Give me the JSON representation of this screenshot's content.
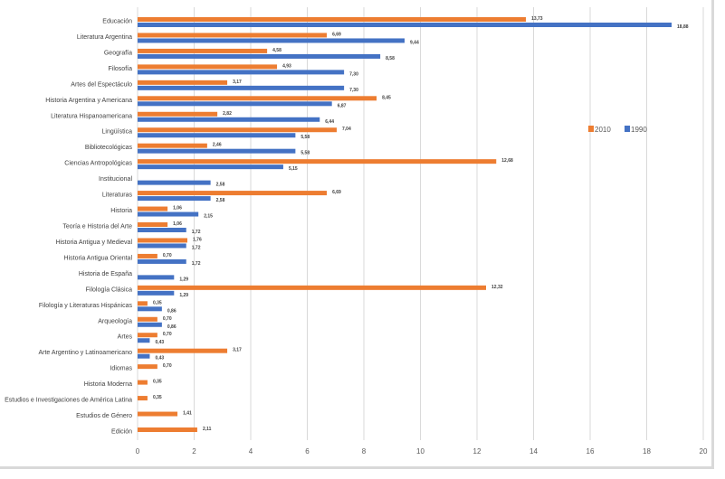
{
  "chart_data": {
    "type": "bar",
    "orientation": "horizontal",
    "title": "",
    "xlabel": "",
    "ylabel": "",
    "xlim": [
      0,
      20
    ],
    "xticks": [
      0,
      2,
      4,
      6,
      8,
      10,
      12,
      14,
      16,
      18,
      20
    ],
    "grid": "vertical",
    "legend_position": "right",
    "categories": [
      "Educación",
      "Literatura Argentina",
      "Geografía",
      "Filosofía",
      "Artes del Espectáculo",
      "Historia Argentina y Americana",
      "Literatura Hispanoamericana",
      "Lingüística",
      "Bibliotecológicas",
      "Ciencias Antropológicas",
      "Institucional",
      "Literaturas",
      "Historia",
      "Teoría e Historia del Arte",
      "Historia Antigua y Medieval",
      "Historia Antigua Oriental",
      "Historia de España",
      "Filología Clásica",
      "Filología y Literaturas Hispánicas",
      "Arqueología",
      "Artes",
      "Arte Argentino y Latinoamericano",
      "Idiomas",
      "Historia Moderna",
      "Estudios e Investigaciones de América Latina",
      "Estudios de Género",
      "Edición"
    ],
    "series": [
      {
        "name": "2010",
        "color": "#ed7d31",
        "values": [
          13.73,
          6.69,
          4.58,
          4.93,
          3.17,
          8.45,
          2.82,
          7.04,
          2.46,
          12.68,
          null,
          6.69,
          1.06,
          1.06,
          1.76,
          0.7,
          null,
          12.32,
          0.35,
          0.7,
          0.7,
          3.17,
          0.7,
          0.35,
          0.35,
          1.41,
          2.11
        ],
        "labels": [
          "13,73",
          "6,69",
          "4,58",
          "4,93",
          "3,17",
          "8,45",
          "2,82",
          "7,04",
          "2,46",
          "12,68",
          null,
          "6,69",
          "1,06",
          "1,06",
          "1,76",
          "0,70",
          null,
          "12,32",
          "0,35",
          "0,70",
          "0,70",
          "3,17",
          "0,70",
          "0,35",
          "0,35",
          "1,41",
          "2,11"
        ]
      },
      {
        "name": "1990",
        "color": "#4472c4",
        "values": [
          18.88,
          9.44,
          8.58,
          7.3,
          7.3,
          6.87,
          6.44,
          5.58,
          5.58,
          5.15,
          2.58,
          2.58,
          2.15,
          1.72,
          1.72,
          1.72,
          1.29,
          1.29,
          0.86,
          0.86,
          0.43,
          0.43,
          null,
          null,
          null,
          null,
          null
        ],
        "labels": [
          "18,88",
          "9,44",
          "8,58",
          "7,30",
          "7,30",
          "6,87",
          "6,44",
          "5,58",
          "5,58",
          "5,15",
          "2,58",
          "2,58",
          "2,15",
          "1,72",
          "1,72",
          "1,72",
          "1,29",
          "1,29",
          "0,86",
          "0,86",
          "0,43",
          "0,43",
          null,
          null,
          null,
          null,
          null
        ]
      }
    ]
  }
}
